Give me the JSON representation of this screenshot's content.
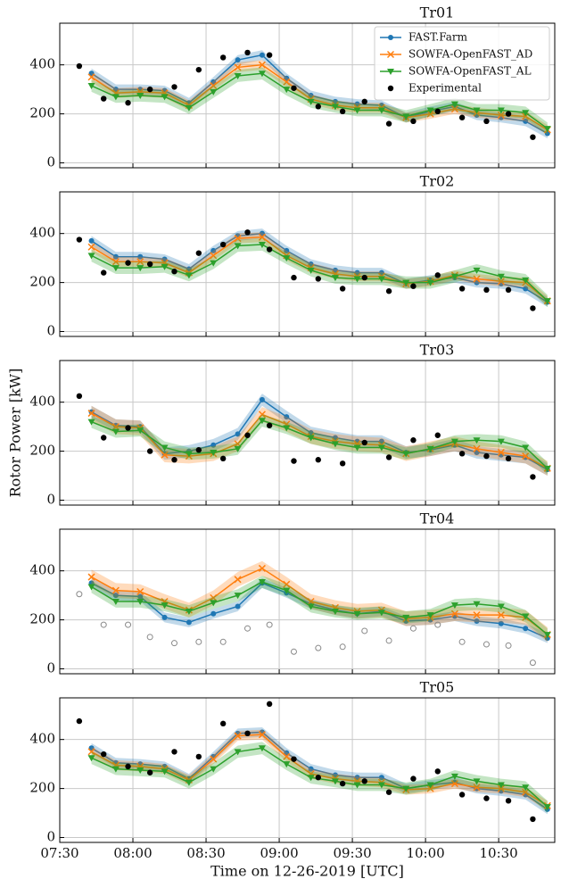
{
  "chart_data": [
    {
      "type": "line",
      "title": "Tr01",
      "legend": "upper right",
      "grid": true,
      "ylim": [
        -20,
        570
      ],
      "yticks": [
        0,
        200,
        400
      ],
      "xlim": [
        "07:30",
        "10:53"
      ],
      "x": [
        "07:43",
        "07:53",
        "08:03",
        "08:13",
        "08:23",
        "08:33",
        "08:43",
        "08:53",
        "09:03",
        "09:13",
        "09:23",
        "09:32",
        "09:42",
        "09:52",
        "10:02",
        "10:12",
        "10:21",
        "10:31",
        "10:41",
        "10:50"
      ],
      "series": [
        {
          "name": "FAST.Farm",
          "color": "#1f77b4",
          "marker": "circle",
          "band": 20,
          "values": [
            365,
            300,
            300,
            295,
            245,
            330,
            420,
            440,
            345,
            275,
            250,
            240,
            235,
            185,
            210,
            230,
            195,
            185,
            170,
            120
          ]
        },
        {
          "name": "SOWFA-OpenFAST_AD",
          "color": "#ff7f0e",
          "marker": "x",
          "band": 20,
          "values": [
            350,
            285,
            290,
            285,
            235,
            315,
            390,
            400,
            330,
            260,
            235,
            225,
            225,
            185,
            200,
            220,
            205,
            195,
            190,
            135
          ]
        },
        {
          "name": "SOWFA-OpenFAST_AL",
          "color": "#2ca02c",
          "marker": "triangle",
          "band": 25,
          "values": [
            315,
            270,
            275,
            270,
            225,
            290,
            355,
            365,
            300,
            250,
            230,
            215,
            215,
            190,
            215,
            240,
            215,
            215,
            205,
            140
          ]
        },
        {
          "name": "Experimental",
          "color": "#000000",
          "marker": "dot",
          "x": [
            "07:38",
            "07:48",
            "07:58",
            "08:07",
            "08:17",
            "08:27",
            "08:37",
            "08:47",
            "08:56",
            "09:06",
            "09:16",
            "09:26",
            "09:35",
            "09:45",
            "09:55",
            "10:05",
            "10:15",
            "10:25",
            "10:34",
            "10:44"
          ],
          "values": [
            395,
            262,
            245,
            300,
            310,
            380,
            430,
            450,
            440,
            305,
            230,
            210,
            250,
            160,
            170,
            210,
            185,
            170,
            200,
            105
          ]
        }
      ]
    },
    {
      "type": "line",
      "title": "Tr02",
      "grid": true,
      "ylim": [
        -20,
        570
      ],
      "yticks": [
        0,
        200,
        400
      ],
      "xlim": [
        "07:30",
        "10:53"
      ],
      "x": [
        "07:43",
        "07:53",
        "08:03",
        "08:13",
        "08:23",
        "08:33",
        "08:43",
        "08:53",
        "09:03",
        "09:13",
        "09:23",
        "09:32",
        "09:42",
        "09:52",
        "10:02",
        "10:12",
        "10:21",
        "10:31",
        "10:41",
        "10:50"
      ],
      "series": [
        {
          "color": "#1f77b4",
          "marker": "circle",
          "band": 20,
          "values": [
            370,
            305,
            305,
            295,
            255,
            330,
            390,
            400,
            330,
            275,
            250,
            240,
            240,
            195,
            210,
            220,
            200,
            195,
            175,
            120
          ]
        },
        {
          "color": "#ff7f0e",
          "marker": "x",
          "band": 20,
          "values": [
            345,
            285,
            285,
            280,
            240,
            310,
            380,
            385,
            310,
            260,
            235,
            225,
            225,
            195,
            205,
            230,
            215,
            205,
            200,
            125
          ]
        },
        {
          "color": "#2ca02c",
          "marker": "triangle",
          "band": 25,
          "values": [
            310,
            260,
            260,
            265,
            230,
            280,
            350,
            355,
            300,
            250,
            220,
            215,
            215,
            200,
            200,
            225,
            250,
            225,
            210,
            125
          ]
        },
        {
          "color": "#000000",
          "marker": "dot",
          "x": [
            "07:38",
            "07:48",
            "07:58",
            "08:07",
            "08:17",
            "08:27",
            "08:37",
            "08:47",
            "08:56",
            "09:06",
            "09:16",
            "09:26",
            "09:35",
            "09:45",
            "09:55",
            "10:05",
            "10:15",
            "10:25",
            "10:34",
            "10:44"
          ],
          "values": [
            375,
            240,
            280,
            275,
            245,
            320,
            355,
            405,
            335,
            220,
            215,
            175,
            220,
            165,
            185,
            230,
            175,
            170,
            170,
            95
          ]
        }
      ]
    },
    {
      "type": "line",
      "title": "Tr03",
      "ylabel": "Rotor Power [kW]",
      "grid": true,
      "ylim": [
        -20,
        570
      ],
      "yticks": [
        0,
        200,
        400
      ],
      "xlim": [
        "07:30",
        "10:53"
      ],
      "x": [
        "07:43",
        "07:53",
        "08:03",
        "08:13",
        "08:23",
        "08:33",
        "08:43",
        "08:53",
        "09:03",
        "09:13",
        "09:23",
        "09:32",
        "09:42",
        "09:52",
        "10:02",
        "10:12",
        "10:21",
        "10:31",
        "10:41",
        "10:50"
      ],
      "series": [
        {
          "color": "#1f77b4",
          "marker": "circle",
          "band": 25,
          "values": [
            360,
            305,
            300,
            190,
            200,
            225,
            270,
            410,
            340,
            275,
            255,
            240,
            240,
            195,
            205,
            225,
            195,
            185,
            175,
            125
          ]
        },
        {
          "color": "#ff7f0e",
          "marker": "x",
          "band": 30,
          "values": [
            355,
            300,
            295,
            185,
            180,
            190,
            230,
            350,
            310,
            260,
            240,
            230,
            225,
            190,
            210,
            230,
            210,
            195,
            180,
            130
          ]
        },
        {
          "color": "#2ca02c",
          "marker": "triangle",
          "band": 25,
          "values": [
            320,
            280,
            285,
            215,
            190,
            195,
            210,
            325,
            295,
            255,
            230,
            215,
            215,
            190,
            210,
            240,
            245,
            240,
            215,
            130
          ]
        },
        {
          "color": "#000000",
          "marker": "dot",
          "x": [
            "07:38",
            "07:48",
            "07:58",
            "08:07",
            "08:17",
            "08:27",
            "08:37",
            "08:47",
            "08:56",
            "09:06",
            "09:16",
            "09:26",
            "09:35",
            "09:45",
            "09:55",
            "10:05",
            "10:15",
            "10:25",
            "10:34",
            "10:44"
          ],
          "values": [
            425,
            255,
            295,
            200,
            165,
            205,
            170,
            265,
            305,
            160,
            165,
            150,
            235,
            175,
            245,
            265,
            190,
            180,
            170,
            95
          ]
        }
      ]
    },
    {
      "type": "line",
      "title": "Tr04",
      "grid": true,
      "ylim": [
        -20,
        570
      ],
      "yticks": [
        0,
        200,
        400
      ],
      "xlim": [
        "07:30",
        "10:53"
      ],
      "x": [
        "07:43",
        "07:53",
        "08:03",
        "08:13",
        "08:23",
        "08:33",
        "08:43",
        "08:53",
        "09:03",
        "09:13",
        "09:23",
        "09:32",
        "09:42",
        "09:52",
        "10:02",
        "10:12",
        "10:21",
        "10:31",
        "10:41",
        "10:50"
      ],
      "series": [
        {
          "color": "#1f77b4",
          "marker": "circle",
          "band": 20,
          "values": [
            350,
            300,
            295,
            210,
            190,
            225,
            255,
            350,
            310,
            265,
            240,
            225,
            235,
            195,
            200,
            215,
            195,
            185,
            165,
            125
          ]
        },
        {
          "color": "#ff7f0e",
          "marker": "x",
          "band": 30,
          "values": [
            375,
            320,
            315,
            275,
            240,
            290,
            365,
            410,
            345,
            275,
            250,
            235,
            240,
            205,
            210,
            225,
            220,
            220,
            210,
            140
          ]
        },
        {
          "color": "#2ca02c",
          "marker": "triangle",
          "band": 25,
          "values": [
            335,
            275,
            275,
            260,
            235,
            270,
            300,
            355,
            320,
            255,
            235,
            225,
            230,
            210,
            220,
            260,
            265,
            255,
            215,
            140
          ]
        },
        {
          "color": "#888888",
          "marker": "hollow",
          "x": [
            "07:38",
            "07:48",
            "07:58",
            "08:07",
            "08:17",
            "08:27",
            "08:37",
            "08:47",
            "08:56",
            "09:06",
            "09:16",
            "09:26",
            "09:35",
            "09:45",
            "09:55",
            "10:05",
            "10:15",
            "10:25",
            "10:34",
            "10:44"
          ],
          "values": [
            305,
            180,
            180,
            130,
            105,
            110,
            110,
            165,
            180,
            70,
            85,
            90,
            155,
            115,
            165,
            180,
            110,
            100,
            95,
            25
          ]
        }
      ]
    },
    {
      "type": "line",
      "title": "Tr05",
      "xlabel": "Time on 12-26-2019 [UTC]",
      "grid": true,
      "ylim": [
        -20,
        570
      ],
      "yticks": [
        0,
        200,
        400
      ],
      "xlim": [
        "07:30",
        "10:53"
      ],
      "xticks": [
        "07:30",
        "08:00",
        "08:30",
        "09:00",
        "09:30",
        "10:00",
        "10:30"
      ],
      "x": [
        "07:43",
        "07:53",
        "08:03",
        "08:13",
        "08:23",
        "08:33",
        "08:43",
        "08:53",
        "09:03",
        "09:13",
        "09:23",
        "09:32",
        "09:42",
        "09:52",
        "10:02",
        "10:12",
        "10:21",
        "10:31",
        "10:41",
        "10:50"
      ],
      "series": [
        {
          "color": "#1f77b4",
          "marker": "circle",
          "band": 20,
          "values": [
            365,
            305,
            300,
            290,
            240,
            330,
            425,
            430,
            345,
            280,
            255,
            245,
            245,
            200,
            215,
            225,
            200,
            190,
            175,
            115
          ]
        },
        {
          "color": "#ff7f0e",
          "marker": "x",
          "band": 20,
          "values": [
            350,
            295,
            290,
            280,
            235,
            320,
            415,
            420,
            330,
            260,
            240,
            230,
            225,
            195,
            200,
            220,
            205,
            200,
            185,
            130
          ]
        },
        {
          "color": "#2ca02c",
          "marker": "triangle",
          "band": 25,
          "values": [
            325,
            280,
            275,
            270,
            225,
            280,
            350,
            365,
            300,
            245,
            230,
            215,
            215,
            200,
            215,
            250,
            230,
            215,
            205,
            125
          ]
        },
        {
          "color": "#000000",
          "marker": "dot",
          "x": [
            "07:38",
            "07:48",
            "07:58",
            "08:07",
            "08:17",
            "08:27",
            "08:37",
            "08:47",
            "08:56",
            "09:06",
            "09:16",
            "09:26",
            "09:35",
            "09:45",
            "09:55",
            "10:05",
            "10:15",
            "10:25",
            "10:34",
            "10:44"
          ],
          "values": [
            475,
            340,
            290,
            265,
            350,
            330,
            465,
            425,
            545,
            320,
            245,
            220,
            230,
            185,
            240,
            270,
            175,
            160,
            150,
            75
          ]
        }
      ]
    }
  ]
}
